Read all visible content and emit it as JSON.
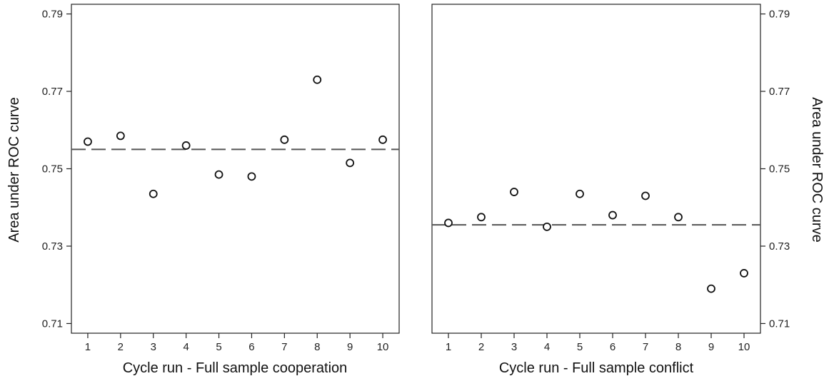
{
  "chart_data": [
    {
      "type": "scatter",
      "xlabel": "Cycle run - Full sample cooperation",
      "ylabel": "Area under ROC curve",
      "x": [
        1,
        2,
        3,
        4,
        5,
        6,
        7,
        8,
        9,
        10
      ],
      "x_tick_labels": [
        "1",
        "2",
        "3",
        "4",
        "5",
        "6",
        "7",
        "8",
        "9",
        "10"
      ],
      "y_ticks": [
        0.71,
        0.73,
        0.75,
        0.77,
        0.79
      ],
      "y_tick_labels": [
        "0.71",
        "0.73",
        "0.75",
        "0.77",
        "0.79"
      ],
      "ylim": [
        0.7075,
        0.7925
      ],
      "xlim": [
        0.5,
        10.5
      ],
      "series": [
        {
          "values": [
            0.757,
            0.7585,
            0.7435,
            0.756,
            0.7485,
            0.748,
            0.7575,
            0.773,
            0.7515,
            0.7575
          ]
        }
      ],
      "reference_line": 0.755,
      "y_axis_side": "left"
    },
    {
      "type": "scatter",
      "xlabel": "Cycle run - Full sample conflict",
      "ylabel": "Area under ROC curve",
      "x": [
        1,
        2,
        3,
        4,
        5,
        6,
        7,
        8,
        9,
        10
      ],
      "x_tick_labels": [
        "1",
        "2",
        "3",
        "4",
        "5",
        "6",
        "7",
        "8",
        "9",
        "10"
      ],
      "y_ticks": [
        0.71,
        0.73,
        0.75,
        0.77,
        0.79
      ],
      "y_tick_labels": [
        "0.71",
        "0.73",
        "0.75",
        "0.77",
        "0.79"
      ],
      "ylim": [
        0.7075,
        0.7925
      ],
      "xlim": [
        0.5,
        10.5
      ],
      "series": [
        {
          "values": [
            0.736,
            0.7375,
            0.744,
            0.735,
            0.7435,
            0.738,
            0.743,
            0.7375,
            0.719,
            0.723
          ]
        }
      ],
      "reference_line": 0.7355,
      "y_axis_side": "right"
    }
  ]
}
